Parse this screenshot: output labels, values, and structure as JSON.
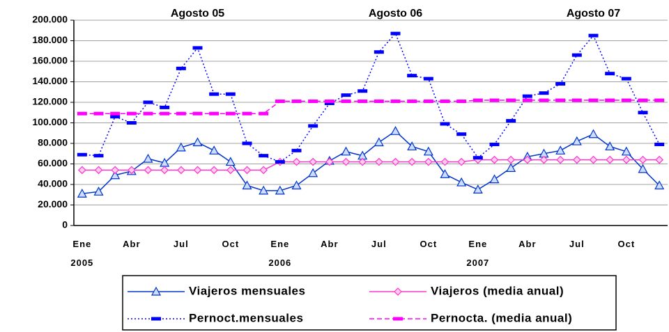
{
  "chart_data": {
    "type": "line",
    "categories": [
      "Ene\n2005",
      null,
      null,
      "Abr",
      null,
      null,
      "Jul",
      null,
      null,
      "Oct",
      null,
      null,
      "Ene\n2006",
      null,
      null,
      "Abr",
      null,
      null,
      "Jul",
      null,
      null,
      "Oct",
      null,
      null,
      "Ene\n2007",
      null,
      null,
      "Abr",
      null,
      null,
      "Jul",
      null,
      null,
      "Oct",
      null,
      null
    ],
    "annotations": [
      {
        "text": "Agosto 05",
        "index": 7
      },
      {
        "text": "Agosto 06",
        "index": 19
      },
      {
        "text": "Agosto 07",
        "index": 31
      }
    ],
    "ylim": [
      0,
      200000
    ],
    "yticks": [
      0,
      {
        "value": 20000,
        "label": "20.000"
      },
      {
        "value": 40000,
        "label": "40.000"
      },
      {
        "value": 60000,
        "label": "60.000"
      },
      {
        "value": 80000,
        "label": "80.000"
      },
      {
        "value": 100000,
        "label": "100.000"
      },
      {
        "value": 120000,
        "label": "120.000"
      },
      {
        "value": 140000,
        "label": "140.000"
      },
      {
        "value": 160000,
        "label": "160.000"
      },
      {
        "value": 180000,
        "label": "180.000"
      },
      {
        "value": 200000,
        "label": "200.000"
      }
    ],
    "grid": true,
    "series": [
      {
        "name": "Viajeros mensuales",
        "color": "#0033cc",
        "marker": "triangle",
        "dash": "solid",
        "values": [
          31000,
          33000,
          49000,
          53000,
          65000,
          61000,
          76000,
          81000,
          73000,
          62000,
          39000,
          34000,
          34000,
          39000,
          51000,
          63000,
          72000,
          68000,
          81000,
          92000,
          77000,
          72000,
          50000,
          42000,
          35000,
          45000,
          56000,
          67000,
          70000,
          73000,
          82000,
          89000,
          77000,
          72000,
          55000,
          39000
        ]
      },
      {
        "name": "Viajeros (media anual)",
        "color": "#ff33cc",
        "marker": "diamond",
        "dash": "solid",
        "values": [
          54000,
          54000,
          54000,
          54000,
          54000,
          54000,
          54000,
          54000,
          54000,
          54000,
          54000,
          54000,
          62000,
          62000,
          62000,
          62000,
          62000,
          62000,
          62000,
          62000,
          62000,
          62000,
          62000,
          62000,
          64000,
          64000,
          64000,
          64000,
          64000,
          64000,
          64000,
          64000,
          64000,
          64000,
          64000,
          64000
        ]
      },
      {
        "name": "Pernoct.mensuales",
        "color": "#0000ff",
        "marker": "dash",
        "dash": "dotted",
        "values": [
          69000,
          68000,
          106000,
          100000,
          120000,
          115000,
          153000,
          173000,
          128000,
          128000,
          80000,
          68000,
          62000,
          73000,
          97000,
          119000,
          127000,
          131000,
          169000,
          187000,
          146000,
          143000,
          99000,
          89000,
          66000,
          79000,
          102000,
          126000,
          129000,
          138000,
          166000,
          185000,
          148000,
          143000,
          110000,
          79000
        ]
      },
      {
        "name": "Pernocta. (media anual)",
        "color": "#ff00ff",
        "marker": "dash",
        "dash": "dashed",
        "values": [
          109000,
          109000,
          109000,
          109000,
          109000,
          109000,
          109000,
          109000,
          109000,
          109000,
          109000,
          109000,
          121000,
          121000,
          121000,
          121000,
          121000,
          121000,
          121000,
          121000,
          121000,
          121000,
          121000,
          121000,
          122000,
          122000,
          122000,
          122000,
          122000,
          122000,
          122000,
          122000,
          122000,
          122000,
          122000,
          122000
        ]
      }
    ]
  }
}
